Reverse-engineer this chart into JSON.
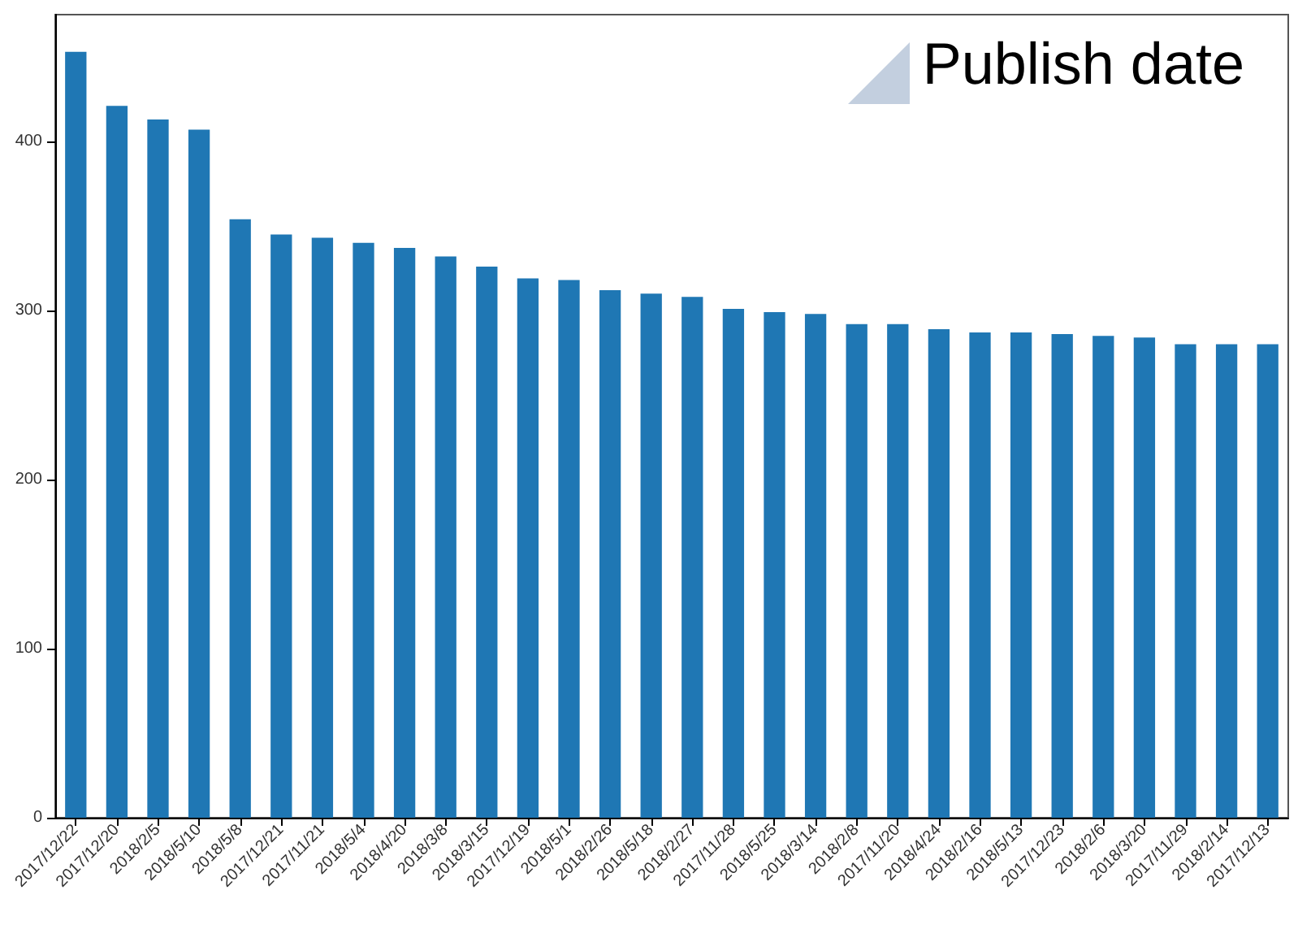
{
  "chart_data": {
    "type": "bar",
    "title": "Publish date",
    "categories": [
      "2017/12/22",
      "2017/12/20",
      "2018/2/5",
      "2018/5/10",
      "2018/5/8",
      "2017/12/21",
      "2017/11/21",
      "2018/5/4",
      "2018/4/20",
      "2018/3/8",
      "2018/3/15",
      "2017/12/19",
      "2018/5/1",
      "2018/2/26",
      "2018/5/18",
      "2018/2/27",
      "2017/11/28",
      "2018/5/25",
      "2018/3/14",
      "2018/2/8",
      "2017/11/20",
      "2018/4/24",
      "2018/2/16",
      "2018/5/13",
      "2017/12/23",
      "2018/2/6",
      "2018/3/20",
      "2017/11/29",
      "2018/2/14",
      "2017/12/13"
    ],
    "values": [
      453,
      421,
      413,
      407,
      354,
      345,
      343,
      340,
      337,
      332,
      326,
      319,
      318,
      312,
      310,
      308,
      301,
      299,
      298,
      292,
      292,
      289,
      287,
      287,
      286,
      285,
      284,
      280,
      280,
      280
    ],
    "color": "#1f77b4",
    "ylim": [
      0,
      475
    ],
    "yticks": [
      0,
      100,
      200,
      300,
      400
    ],
    "grid": false
  }
}
